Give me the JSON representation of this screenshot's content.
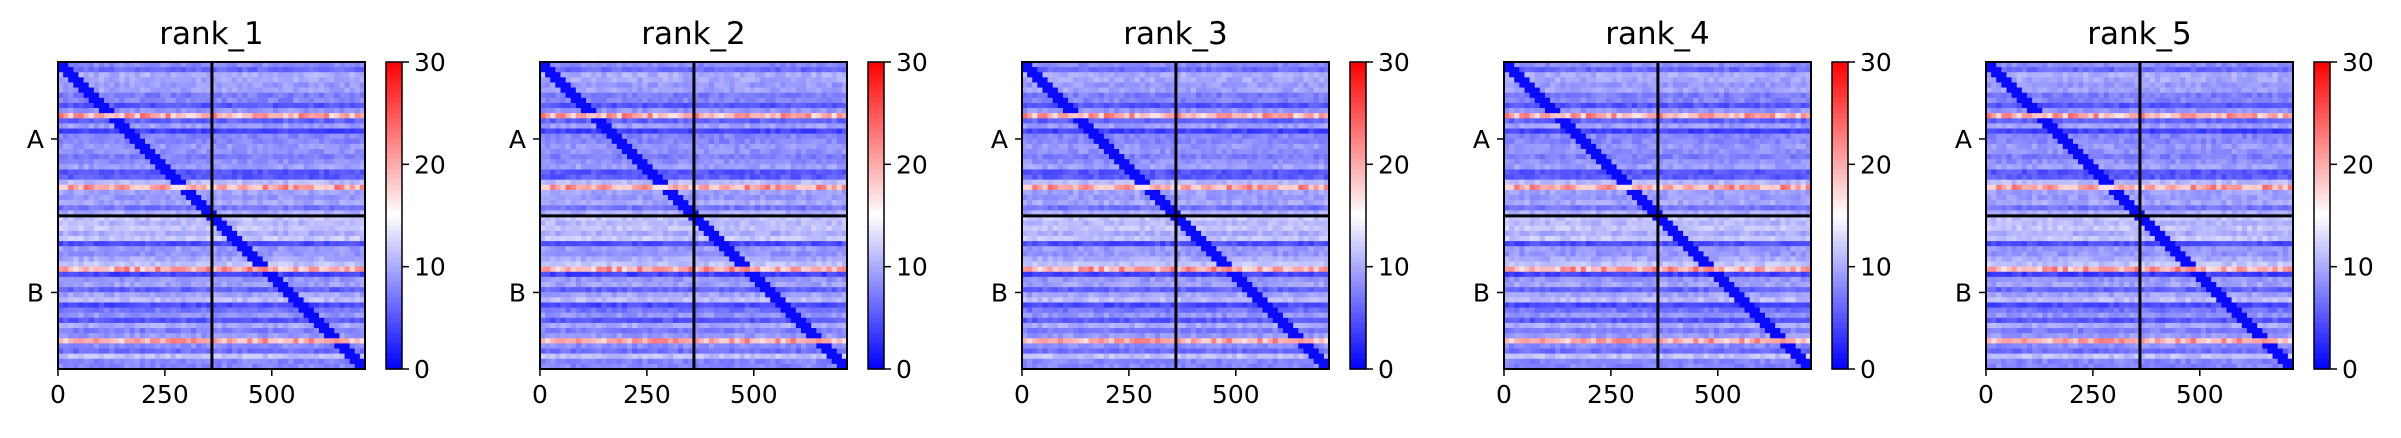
{
  "chart_data": [
    {
      "type": "heatmap",
      "title": "rank_1",
      "x_ticks": [
        "0",
        "250",
        "500"
      ],
      "x_range": [
        0,
        718
      ],
      "y_ticks": [
        "A",
        "B"
      ],
      "chain_boundary": 360,
      "colorbar": {
        "ticks": [
          "0",
          "10",
          "20",
          "30"
        ],
        "range": [
          0,
          30
        ],
        "colormap": "bwr"
      }
    },
    {
      "type": "heatmap",
      "title": "rank_2",
      "x_ticks": [
        "0",
        "250",
        "500"
      ],
      "x_range": [
        0,
        718
      ],
      "y_ticks": [
        "A",
        "B"
      ],
      "chain_boundary": 360,
      "colorbar": {
        "ticks": [
          "0",
          "10",
          "20",
          "30"
        ],
        "range": [
          0,
          30
        ],
        "colormap": "bwr"
      }
    },
    {
      "type": "heatmap",
      "title": "rank_3",
      "x_ticks": [
        "0",
        "250",
        "500"
      ],
      "x_range": [
        0,
        718
      ],
      "y_ticks": [
        "A",
        "B"
      ],
      "chain_boundary": 360,
      "colorbar": {
        "ticks": [
          "0",
          "10",
          "20",
          "30"
        ],
        "range": [
          0,
          30
        ],
        "colormap": "bwr"
      }
    },
    {
      "type": "heatmap",
      "title": "rank_4",
      "x_ticks": [
        "0",
        "250",
        "500"
      ],
      "x_range": [
        0,
        718
      ],
      "y_ticks": [
        "A",
        "B"
      ],
      "chain_boundary": 360,
      "colorbar": {
        "ticks": [
          "0",
          "10",
          "20",
          "30"
        ],
        "range": [
          0,
          30
        ],
        "colormap": "bwr"
      }
    },
    {
      "type": "heatmap",
      "title": "rank_5",
      "x_ticks": [
        "0",
        "250",
        "500"
      ],
      "x_range": [
        0,
        718
      ],
      "y_ticks": [
        "A",
        "B"
      ],
      "chain_boundary": 360,
      "colorbar": {
        "ticks": [
          "0",
          "10",
          "20",
          "30"
        ],
        "range": [
          0,
          30
        ],
        "colormap": "bwr"
      }
    }
  ],
  "colors": {
    "low": "#0000ff",
    "mid": "#ffffff",
    "high": "#ff0000",
    "axis": "#000000"
  }
}
